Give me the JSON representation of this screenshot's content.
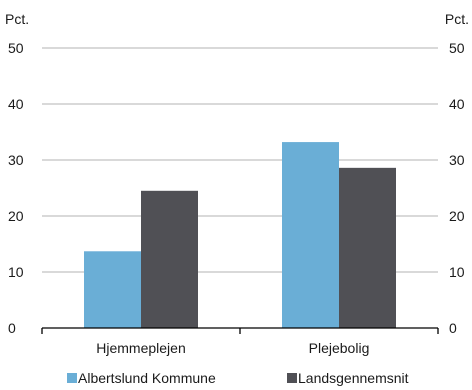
{
  "chart_data": {
    "type": "bar",
    "title": "",
    "xlabel": "",
    "ylabel_left": "Pct.",
    "ylabel_right": "Pct.",
    "categories": [
      "Hjemmeplejen",
      "Plejebolig"
    ],
    "series": [
      {
        "name": "Albertslund Kommune",
        "color": "#6aaed6",
        "values": [
          13.7,
          33.2
        ]
      },
      {
        "name": "Landsgennemsnit",
        "color": "#505055",
        "values": [
          24.5,
          28.6
        ]
      }
    ],
    "ylim": [
      0,
      50
    ],
    "yticks": [
      0,
      10,
      20,
      30,
      40,
      50
    ],
    "grid": true,
    "legend_position": "bottom"
  }
}
